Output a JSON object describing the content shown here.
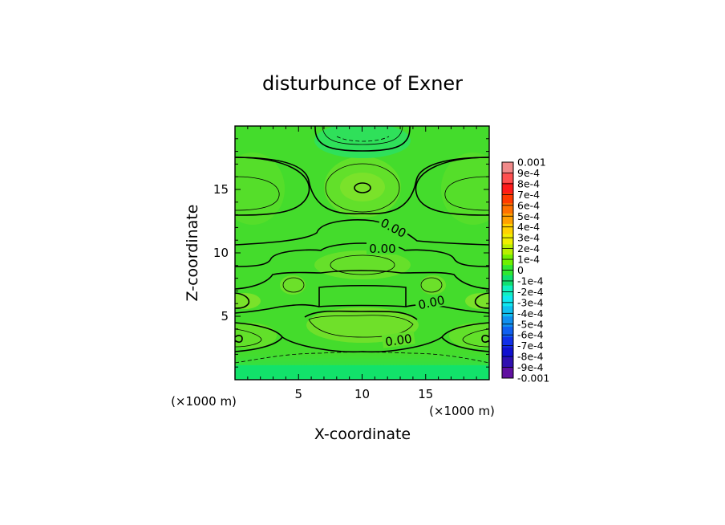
{
  "chart_data": {
    "type": "heatmap",
    "title": "disturbunce of Exner",
    "xlabel": "X-coordinate",
    "ylabel": "Z-coordinate",
    "x_unit_note": "(×1000 m)",
    "y_unit_note": "(×1000 m)",
    "xlim": [
      0,
      20
    ],
    "ylim": [
      0,
      20
    ],
    "x_ticks": [
      {
        "value": 5,
        "label": "5"
      },
      {
        "value": 10,
        "label": "10"
      },
      {
        "value": 15,
        "label": "15"
      }
    ],
    "y_ticks": [
      {
        "value": 5,
        "label": "5"
      },
      {
        "value": 10,
        "label": "10"
      },
      {
        "value": 15,
        "label": "15"
      }
    ],
    "colorbar": {
      "labels": [
        "0.001",
        "9e-4",
        "8e-4",
        "7e-4",
        "6e-4",
        "5e-4",
        "4e-4",
        "3e-4",
        "2e-4",
        "1e-4",
        "0",
        "-1e-4",
        "-2e-4",
        "-3e-4",
        "-4e-4",
        "-5e-4",
        "-6e-4",
        "-7e-4",
        "-8e-4",
        "-9e-4",
        "-0.001"
      ],
      "colors": [
        "#f08a8a",
        "#ff5050",
        "#ff1a1a",
        "#ff3a00",
        "#ff7000",
        "#ffa000",
        "#ffd200",
        "#f0f000",
        "#b8f000",
        "#70f000",
        "#30e830",
        "#10e070",
        "#10f0c0",
        "#10e8f0",
        "#10c0f0",
        "#1090f0",
        "#1060f0",
        "#1030e8",
        "#1010d0",
        "#3010b0",
        "#6010a0"
      ]
    },
    "contour_labels": [
      {
        "text": "0.00",
        "x": 11.4,
        "z": 12.0,
        "angle": 28
      },
      {
        "text": "0.00",
        "x": 9.5,
        "z": 10.3,
        "angle": 0
      },
      {
        "text": "0.00",
        "x": 15.9,
        "z": 5.9,
        "angle": -12
      },
      {
        "text": "0.00",
        "x": 13.9,
        "z": 3.0,
        "angle": -8
      }
    ]
  }
}
